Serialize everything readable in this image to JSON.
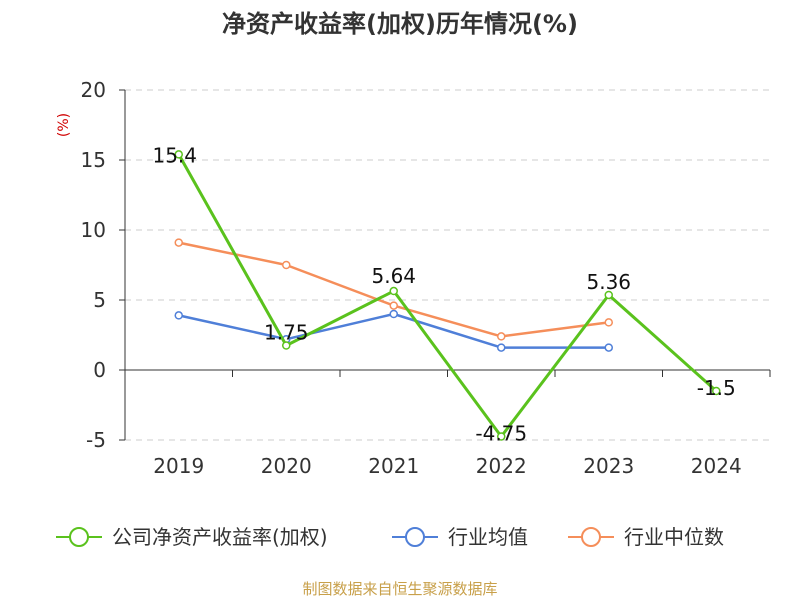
{
  "chart_data": {
    "type": "line",
    "title": "净资产收益率(加权)历年情况(%)",
    "ylabel": "(%)",
    "xlabel": "",
    "categories": [
      "2019",
      "2020",
      "2021",
      "2022",
      "2023",
      "2024"
    ],
    "ylim": [
      -5,
      20
    ],
    "yticks": [
      20,
      15,
      10,
      5,
      0,
      -5
    ],
    "grid": true,
    "legend_position": "bottom",
    "series": [
      {
        "name": "公司净资产收益率(加权)",
        "color": "#5ac21d",
        "values": [
          15.4,
          1.75,
          5.64,
          -4.75,
          5.36,
          -1.5
        ],
        "labels": [
          "15.4",
          "1.75",
          "5.64",
          "-4.75",
          "5.36",
          "-1.5"
        ]
      },
      {
        "name": "行业均值",
        "color": "#4f7fd8",
        "values": [
          3.9,
          2.2,
          4.0,
          1.6,
          1.6,
          null
        ]
      },
      {
        "name": "行业中位数",
        "color": "#f58e5a",
        "values": [
          9.1,
          7.5,
          4.6,
          2.4,
          3.4,
          null
        ]
      }
    ]
  },
  "source": {
    "text": "制图数据来自恒生聚源数据库",
    "color": "#c8a04a"
  }
}
